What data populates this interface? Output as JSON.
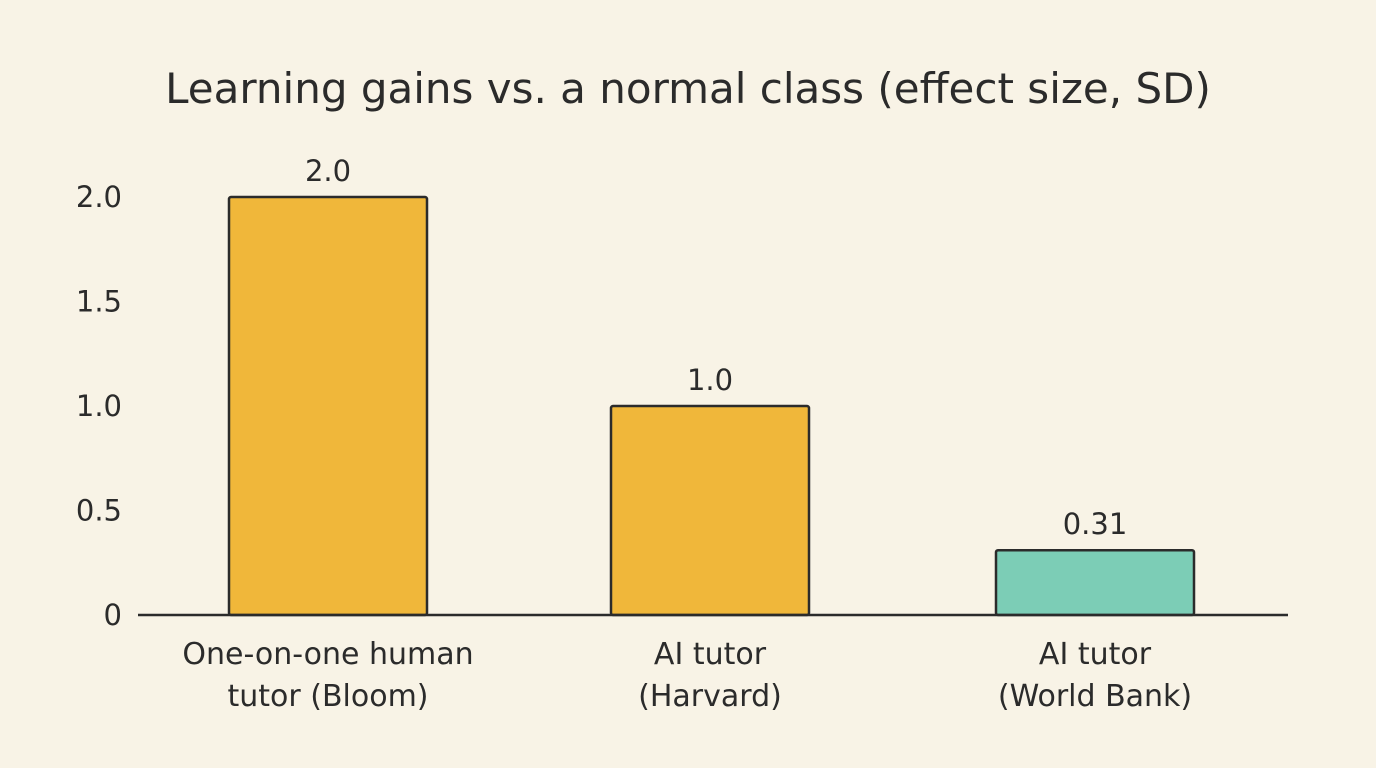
{
  "chart_data": {
    "type": "bar",
    "title": "Learning gains vs. a normal class (effect size, SD)",
    "xlabel": "",
    "ylabel": "",
    "ylim": [
      0,
      2.0
    ],
    "yticks": [
      {
        "value": 0,
        "label": "0"
      },
      {
        "value": 0.5,
        "label": "0.5"
      },
      {
        "value": 1.0,
        "label": "1.0"
      },
      {
        "value": 1.5,
        "label": "1.5"
      },
      {
        "value": 2.0,
        "label": "2.0"
      }
    ],
    "grid": false,
    "categories": [
      [
        "One-on-one human",
        "tutor (Bloom)"
      ],
      [
        "AI tutor",
        "(Harvard)"
      ],
      [
        "AI tutor",
        "(World Bank)"
      ]
    ],
    "values": [
      2.0,
      1.0,
      0.31
    ],
    "value_labels": [
      "2.0",
      "1.0",
      "0.31"
    ],
    "colors": [
      "#f0b73a",
      "#f0b73a",
      "#7ccdb6"
    ]
  }
}
